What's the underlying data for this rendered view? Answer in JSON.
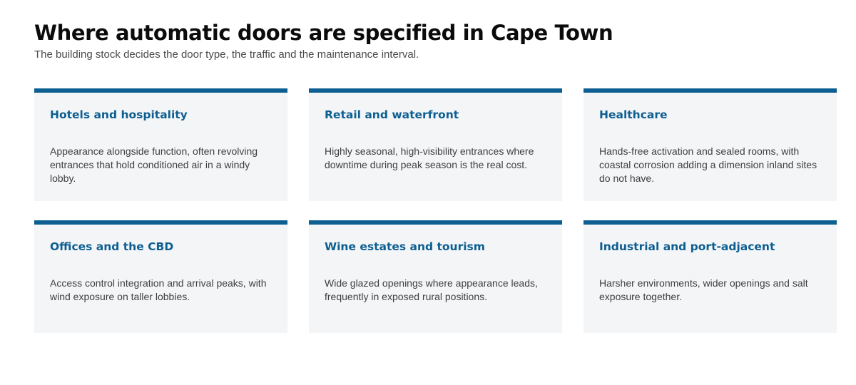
{
  "header": {
    "title": "Where automatic doors are specified in Cape Town",
    "subtitle": "The building stock decides the door type, the traffic and the maintenance interval."
  },
  "theme": {
    "accent": "#0d5e91",
    "card_background": "#f3f5f7"
  },
  "cards": [
    {
      "title": "Hotels and hospitality",
      "body": "Appearance alongside function, often revolving entrances that hold conditioned air in a windy lobby."
    },
    {
      "title": "Retail and waterfront",
      "body": "Highly seasonal, high-visibility entrances where downtime during peak season is the real cost."
    },
    {
      "title": "Healthcare",
      "body": "Hands-free activation and sealed rooms, with coastal corrosion adding a dimension inland sites do not have."
    },
    {
      "title": "Offices and the CBD",
      "body": "Access control integration and arrival peaks, with wind exposure on taller lobbies."
    },
    {
      "title": "Wine estates and tourism",
      "body": "Wide glazed openings where appearance leads, frequently in exposed rural positions."
    },
    {
      "title": "Industrial and port-adjacent",
      "body": "Harsher environments, wider openings and salt exposure together."
    }
  ]
}
